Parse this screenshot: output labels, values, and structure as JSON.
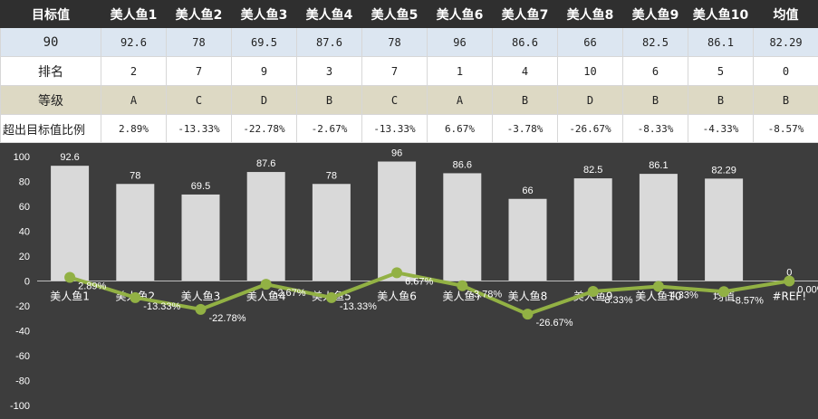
{
  "table": {
    "header": {
      "label": "目标值",
      "columns": [
        "美人鱼1",
        "美人鱼2",
        "美人鱼3",
        "美人鱼4",
        "美人鱼5",
        "美人鱼6",
        "美人鱼7",
        "美人鱼8",
        "美人鱼9",
        "美人鱼10",
        "均值"
      ]
    },
    "rows": [
      {
        "label": "90",
        "cells": [
          "92.6",
          "78",
          "69.5",
          "87.6",
          "78",
          "96",
          "86.6",
          "66",
          "82.5",
          "86.1",
          "82.29"
        ]
      },
      {
        "label": "排名",
        "cells": [
          "2",
          "7",
          "9",
          "3",
          "7",
          "1",
          "4",
          "10",
          "6",
          "5",
          "0"
        ]
      },
      {
        "label": "等级",
        "cells": [
          "A",
          "C",
          "D",
          "B",
          "C",
          "A",
          "B",
          "D",
          "B",
          "B",
          "B"
        ]
      },
      {
        "label": "超出目标值比例",
        "cells": [
          "2.89%",
          "-13.33%",
          "-22.78%",
          "-2.67%",
          "-13.33%",
          "6.67%",
          "-3.78%",
          "-26.67%",
          "-8.33%",
          "-4.33%",
          "-8.57%"
        ]
      }
    ]
  },
  "chart_data": {
    "type": "bar",
    "categories": [
      "美人鱼1",
      "美人鱼2",
      "美人鱼3",
      "美人鱼4",
      "美人鱼5",
      "美人鱼6",
      "美人鱼7",
      "美人鱼8",
      "美人鱼9",
      "美人鱼10",
      "均值",
      "#REF!"
    ],
    "series": [
      {
        "type": "bar",
        "values": [
          92.6,
          78,
          69.5,
          87.6,
          78,
          96,
          86.6,
          66,
          82.5,
          86.1,
          82.29,
          0
        ],
        "labels": [
          "92.6",
          "78",
          "69.5",
          "87.6",
          "78",
          "96",
          "86.6",
          "66",
          "82.5",
          "86.1",
          "82.29",
          "0"
        ]
      },
      {
        "type": "line",
        "values": [
          2.89,
          -13.33,
          -22.78,
          -2.67,
          -13.33,
          6.67,
          -3.78,
          -26.67,
          -8.33,
          -4.33,
          -8.57,
          0
        ],
        "labels": [
          "2.89%",
          "-13.33%",
          "-22.78%",
          "-2.67%",
          "-13.33%",
          "6.67%",
          "-3.78%",
          "-26.67%",
          "-8.33%",
          "-4.33%",
          "-8.57%",
          "0.00%"
        ]
      }
    ],
    "ylim": [
      -100,
      100
    ],
    "yticks": [
      100,
      80,
      60,
      40,
      20,
      0,
      -20,
      -40,
      -60,
      -80,
      -100
    ],
    "colors": {
      "bar": "#d9d9d9",
      "line": "#92b144",
      "background": "#3d3d3d",
      "text": "#ffffff"
    },
    "grid": false,
    "legend": "none"
  }
}
